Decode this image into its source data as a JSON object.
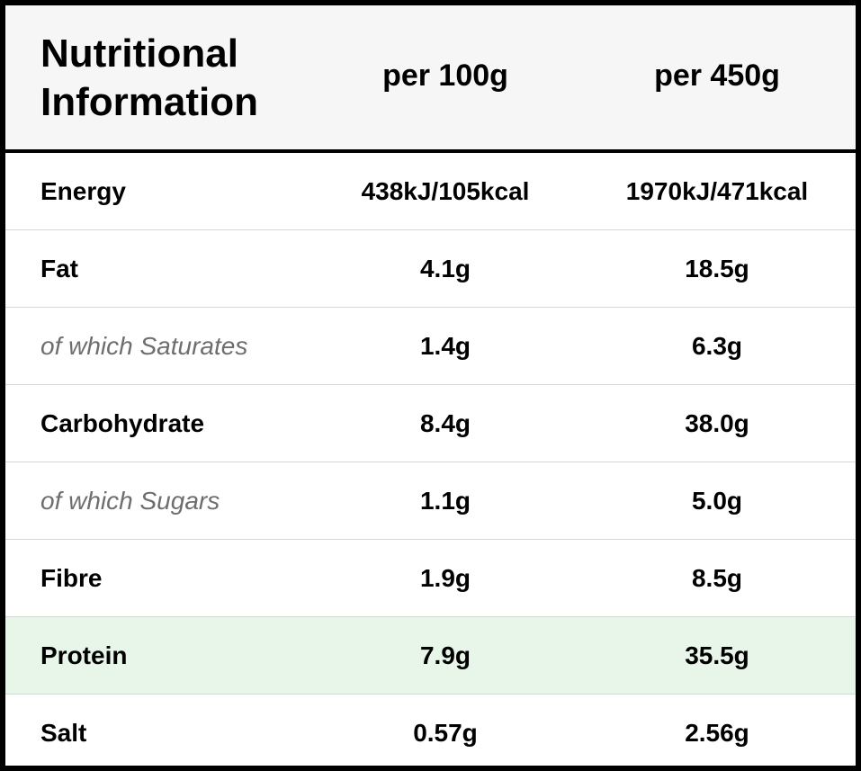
{
  "header": {
    "title_line1": "Nutritional",
    "title_line2": "Information",
    "col_per_100g": "per 100g",
    "col_per_450g": "per 450g"
  },
  "rows": [
    {
      "label": "Energy",
      "per_100g": "438kJ/105kcal",
      "per_450g": "1970kJ/471kcal",
      "style": "main"
    },
    {
      "label": "Fat",
      "per_100g": "4.1g",
      "per_450g": "18.5g",
      "style": "main"
    },
    {
      "label": "of which Saturates",
      "per_100g": "1.4g",
      "per_450g": "6.3g",
      "style": "sub"
    },
    {
      "label": "Carbohydrate",
      "per_100g": "8.4g",
      "per_450g": "38.0g",
      "style": "main"
    },
    {
      "label": "of which Sugars",
      "per_100g": "1.1g",
      "per_450g": "5.0g",
      "style": "sub"
    },
    {
      "label": "Fibre",
      "per_100g": "1.9g",
      "per_450g": "8.5g",
      "style": "main"
    },
    {
      "label": "Protein",
      "per_100g": "7.9g",
      "per_450g": "35.5g",
      "style": "highlight"
    },
    {
      "label": "Salt",
      "per_100g": "0.57g",
      "per_450g": "2.56g",
      "style": "main"
    }
  ],
  "colors": {
    "border": "#000000",
    "header_bg": "#f6f6f6",
    "highlight_bg": "#e8f5e9",
    "sub_text": "#6e6e6e",
    "row_divider": "#d6d6d6"
  }
}
